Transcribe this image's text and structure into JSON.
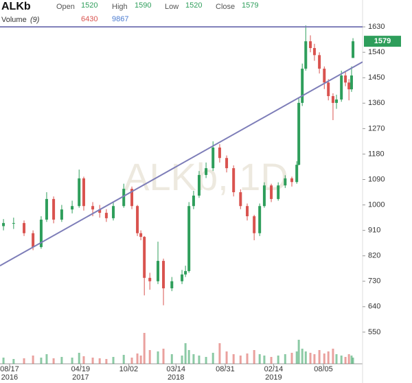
{
  "chart_data": {
    "type": "candlestick",
    "title": "ALKb",
    "watermark": "ALKb, 1D",
    "header": {
      "open_label": "Open",
      "open": 1520,
      "high_label": "High",
      "high": 1590,
      "low_label": "Low",
      "low": 1520,
      "close_label": "Close",
      "close": 1579,
      "volume_label": "Volume",
      "volume_period": "(9)",
      "volume_values": [
        6430,
        9867
      ]
    },
    "x": [
      "2016-07-27",
      "2016-08-31",
      "2016-10-06",
      "2016-11-06",
      "2016-12-04",
      "2016-12-23",
      "2017-01-16",
      "2017-02-13",
      "2017-03-21",
      "2017-04-14",
      "2017-04-30",
      "2017-05-31",
      "2017-06-24",
      "2017-07-17",
      "2017-08-10",
      "2017-09-15",
      "2017-10-13",
      "2017-11-01",
      "2017-11-13",
      "2017-11-25",
      "2017-12-14",
      "2018-01-11",
      "2018-01-30",
      "2018-02-28",
      "2018-04-04",
      "2018-04-16",
      "2018-04-28",
      "2018-05-14",
      "2018-06-02",
      "2018-06-26",
      "2018-07-20",
      "2018-08-12",
      "2018-09-05",
      "2018-09-29",
      "2018-10-23",
      "2018-11-15",
      "2018-12-09",
      "2018-12-28",
      "2019-01-13",
      "2019-02-06",
      "2019-03-02",
      "2019-03-26",
      "2019-04-18",
      "2019-05-05",
      "2019-05-12",
      "2019-05-24",
      "2019-06-05",
      "2019-06-21",
      "2019-07-05",
      "2019-07-22",
      "2019-08-08",
      "2019-08-22",
      "2019-09-07",
      "2019-09-19",
      "2019-10-06",
      "2019-10-20",
      "2019-11-01",
      "2019-11-10",
      "2019-11-15"
    ],
    "open": [
      925,
      936,
      936,
      900,
      851,
      948,
      1021,
      948,
      984,
      996,
      1094,
      996,
      984,
      972,
      953,
      996,
      1057,
      996,
      900,
      887,
      742,
      730,
      802,
      705,
      730,
      754,
      766,
      996,
      1033,
      1106,
      1130,
      1203,
      1166,
      1130,
      1045,
      996,
      960,
      900,
      996,
      1069,
      1021,
      1069,
      1094,
      1081,
      1142,
      1361,
      1482,
      1579,
      1555,
      1530,
      1482,
      1433,
      1385,
      1361,
      1373,
      1458,
      1433,
      1409,
      1520
    ],
    "high": [
      950,
      955,
      945,
      910,
      960,
      1045,
      1030,
      1000,
      1015,
      1125,
      1100,
      1010,
      1000,
      985,
      1010,
      1075,
      1065,
      1000,
      910,
      890,
      760,
      870,
      810,
      745,
      770,
      785,
      1010,
      1050,
      1120,
      1150,
      1225,
      1215,
      1175,
      1140,
      1055,
      1005,
      965,
      1005,
      1080,
      1075,
      1080,
      1105,
      1100,
      1155,
      1380,
      1500,
      1635,
      1600,
      1570,
      1540,
      1490,
      1445,
      1395,
      1390,
      1475,
      1470,
      1445,
      1490,
      1590
    ],
    "low": [
      910,
      915,
      890,
      840,
      845,
      940,
      935,
      940,
      970,
      990,
      980,
      960,
      955,
      940,
      945,
      990,
      985,
      890,
      875,
      680,
      700,
      720,
      645,
      695,
      720,
      745,
      760,
      985,
      1025,
      1095,
      1120,
      1150,
      1115,
      1030,
      985,
      945,
      875,
      890,
      990,
      1010,
      1015,
      1060,
      1065,
      1075,
      1140,
      1350,
      1475,
      1540,
      1510,
      1465,
      1410,
      1370,
      1300,
      1340,
      1365,
      1420,
      1370,
      1400,
      1520
    ],
    "close": [
      936,
      936,
      900,
      851,
      948,
      1021,
      948,
      984,
      996,
      1094,
      996,
      984,
      972,
      953,
      996,
      1057,
      996,
      900,
      887,
      742,
      730,
      802,
      705,
      730,
      754,
      766,
      996,
      1033,
      1106,
      1130,
      1203,
      1166,
      1130,
      1045,
      996,
      960,
      900,
      996,
      1069,
      1021,
      1069,
      1094,
      1081,
      1142,
      1361,
      1482,
      1579,
      1555,
      1530,
      1482,
      1433,
      1385,
      1361,
      1373,
      1458,
      1433,
      1409,
      1458,
      1579
    ],
    "volume": [
      9000,
      7000,
      8000,
      12000,
      9000,
      14000,
      8000,
      10000,
      9000,
      16000,
      11000,
      9000,
      8000,
      7000,
      10000,
      13000,
      9000,
      15000,
      12000,
      45000,
      20000,
      18000,
      22000,
      14000,
      12000,
      30000,
      20000,
      14000,
      12000,
      10000,
      16000,
      30000,
      18000,
      14000,
      12000,
      15000,
      20000,
      14000,
      12000,
      10000,
      12000,
      14000,
      16000,
      18000,
      35000,
      22000,
      18000,
      16000,
      14000,
      20000,
      15000,
      18000,
      22000,
      14000,
      12000,
      10000,
      14000,
      12000,
      9000
    ],
    "volume_ylim": [
      0,
      60000
    ],
    "up_color": "#2e9e5b",
    "down_color": "#d9534f",
    "xlim": [
      "2016-07-15",
      "2019-12-18"
    ],
    "ylim": [
      438,
      1725
    ],
    "yticks": [
      550,
      640,
      730,
      820,
      910,
      1000,
      1090,
      1180,
      1270,
      1360,
      1450,
      1540,
      1630
    ],
    "xticks": [
      {
        "value": "2016-08-17",
        "label": "08/17",
        "year": "2016"
      },
      {
        "value": "2017-04-19",
        "label": "04/19",
        "year": "2017"
      },
      {
        "value": "2017-10-02",
        "label": "10/02"
      },
      {
        "value": "2018-03-14",
        "label": "03/14",
        "year": "2018"
      },
      {
        "value": "2018-08-31",
        "label": "08/31"
      },
      {
        "value": "2019-02-14",
        "label": "02/14",
        "year": "2019"
      },
      {
        "value": "2019-08-05",
        "label": "08/05"
      }
    ],
    "trendlines": [
      {
        "x": [
          "2016-07-15",
          "2019-12-18"
        ],
        "y": [
          1630,
          1630
        ],
        "color": "#7d7db8"
      },
      {
        "x": [
          "2016-07-15",
          "2019-12-18"
        ],
        "y": [
          785,
          1506
        ],
        "color": "#7d7db8"
      }
    ],
    "grid": false
  }
}
